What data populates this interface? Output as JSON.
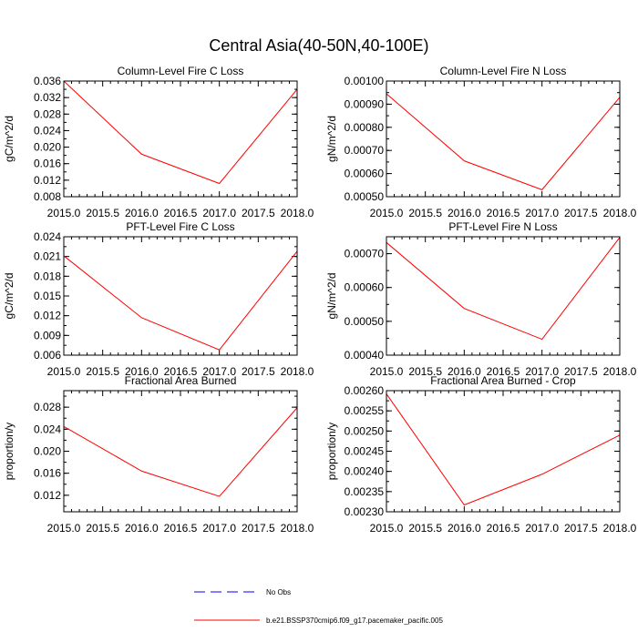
{
  "title": "Central Asia(40-50N,40-100E)",
  "colors": {
    "model": "#ff0000",
    "obs": "#0000ff",
    "axis": "#000000"
  },
  "legend": {
    "items": [
      {
        "label": "No Obs",
        "style": "dashed",
        "color": "#0000ff"
      },
      {
        "label": "b.e21.BSSP370cmip6.f09_g17.pacemaker_pacific.005",
        "style": "solid",
        "color": "#ff0000"
      }
    ]
  },
  "chart_data": [
    {
      "type": "line",
      "title": "Column-Level Fire C Loss",
      "ylabel": "gC/m^2/d",
      "x": [
        2015.0,
        2016.0,
        2017.0,
        2018.0
      ],
      "series": [
        {
          "name": "b.e21.BSSP370cmip6.f09_g17.pacemaker_pacific.005",
          "values": [
            0.036,
            0.0183,
            0.0112,
            0.034
          ]
        }
      ],
      "xlim": [
        2015.0,
        2018.0
      ],
      "ylim": [
        0.008,
        0.036
      ],
      "xticks": [
        "2015.0",
        "2015.5",
        "2016.0",
        "2016.5",
        "2017.0",
        "2017.5",
        "2018.0"
      ],
      "yticks": [
        "0.008",
        "0.012",
        "0.016",
        "0.020",
        "0.024",
        "0.028",
        "0.032",
        "0.036"
      ]
    },
    {
      "type": "line",
      "title": "Column-Level Fire N Loss",
      "ylabel": "gN/m^2/d",
      "x": [
        2015.0,
        2016.0,
        2017.0,
        2018.0
      ],
      "series": [
        {
          "name": "b.e21.BSSP370cmip6.f09_g17.pacemaker_pacific.005",
          "values": [
            0.000945,
            0.000655,
            0.00053,
            0.00093
          ]
        }
      ],
      "xlim": [
        2015.0,
        2018.0
      ],
      "ylim": [
        0.0005,
        0.001
      ],
      "xticks": [
        "2015.0",
        "2015.5",
        "2016.0",
        "2016.5",
        "2017.0",
        "2017.5",
        "2018.0"
      ],
      "yticks": [
        "0.00050",
        "0.00060",
        "0.00070",
        "0.00080",
        "0.00090",
        "0.00100"
      ]
    },
    {
      "type": "line",
      "title": "PFT-Level Fire C Loss",
      "ylabel": "gC/m^2/d",
      "x": [
        2015.0,
        2016.0,
        2017.0,
        2018.0
      ],
      "series": [
        {
          "name": "b.e21.BSSP370cmip6.f09_g17.pacemaker_pacific.005",
          "values": [
            0.0211,
            0.0117,
            0.0068,
            0.0218
          ]
        }
      ],
      "xlim": [
        2015.0,
        2018.0
      ],
      "ylim": [
        0.006,
        0.024
      ],
      "xticks": [
        "2015.0",
        "2015.5",
        "2016.0",
        "2016.5",
        "2017.0",
        "2017.5",
        "2018.0"
      ],
      "yticks": [
        "0.006",
        "0.009",
        "0.012",
        "0.015",
        "0.018",
        "0.021",
        "0.024"
      ]
    },
    {
      "type": "line",
      "title": "PFT-Level Fire N Loss",
      "ylabel": "gN/m^2/d",
      "x": [
        2015.0,
        2016.0,
        2017.0,
        2018.0
      ],
      "series": [
        {
          "name": "b.e21.BSSP370cmip6.f09_g17.pacemaker_pacific.005",
          "values": [
            0.000733,
            0.000538,
            0.000447,
            0.000748
          ]
        }
      ],
      "xlim": [
        2015.0,
        2018.0
      ],
      "ylim": [
        0.0004,
        0.00075
      ],
      "xticks": [
        "2015.0",
        "2015.5",
        "2016.0",
        "2016.5",
        "2017.0",
        "2017.5",
        "2018.0"
      ],
      "yticks": [
        "0.00040",
        "0.00050",
        "0.00060",
        "0.00070"
      ]
    },
    {
      "type": "line",
      "title": "Fractional Area Burned",
      "ylabel": "proportion/y",
      "x": [
        2015.0,
        2016.0,
        2017.0,
        2018.0
      ],
      "series": [
        {
          "name": "b.e21.BSSP370cmip6.f09_g17.pacemaker_pacific.005",
          "values": [
            0.0245,
            0.0164,
            0.0118,
            0.0279
          ]
        }
      ],
      "xlim": [
        2015.0,
        2018.0
      ],
      "ylim": [
        0.009,
        0.031
      ],
      "xticks": [
        "2015.0",
        "2015.5",
        "2016.0",
        "2016.5",
        "2017.0",
        "2017.5",
        "2018.0"
      ],
      "yticks": [
        "0.012",
        "0.016",
        "0.020",
        "0.024",
        "0.028"
      ]
    },
    {
      "type": "line",
      "title": "Fractional Area Burned - Crop",
      "ylabel": "proportion/y",
      "x": [
        2015.0,
        2016.0,
        2017.0,
        2018.0
      ],
      "series": [
        {
          "name": "b.e21.BSSP370cmip6.f09_g17.pacemaker_pacific.005",
          "values": [
            0.002592,
            0.002317,
            0.002393,
            0.00249
          ]
        }
      ],
      "xlim": [
        2015.0,
        2018.0
      ],
      "ylim": [
        0.0023,
        0.0026
      ],
      "xticks": [
        "2015.0",
        "2015.5",
        "2016.0",
        "2016.5",
        "2017.0",
        "2017.5",
        "2018.0"
      ],
      "yticks": [
        "0.00230",
        "0.00235",
        "0.00240",
        "0.00245",
        "0.00250",
        "0.00255",
        "0.00260"
      ]
    }
  ]
}
